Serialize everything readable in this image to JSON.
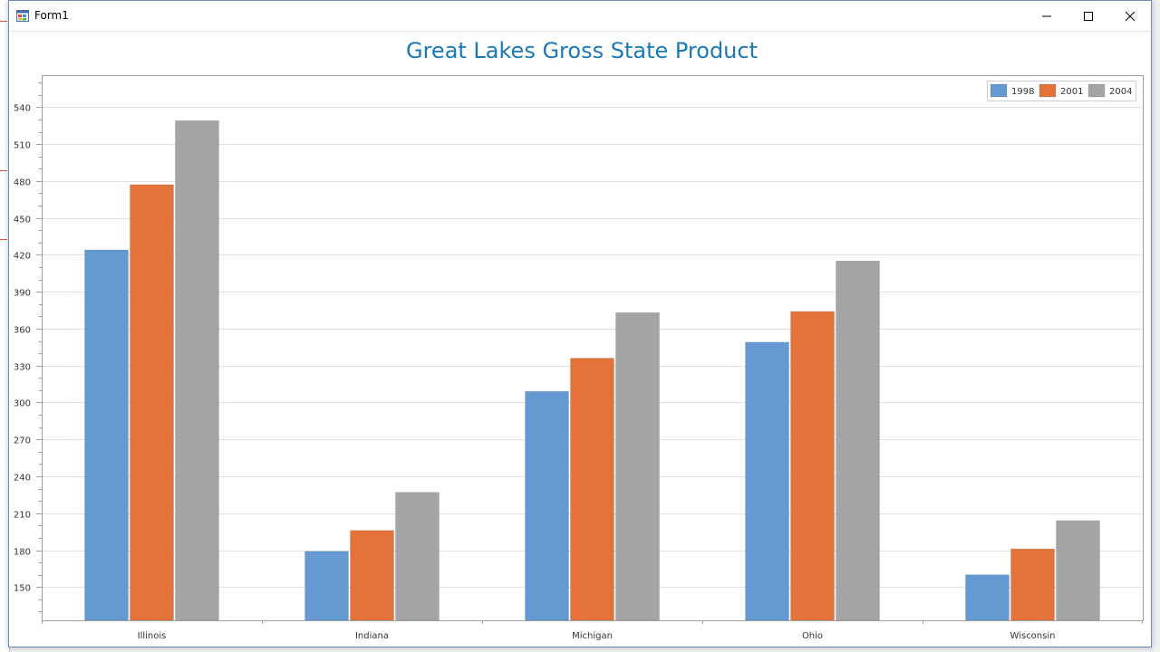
{
  "window": {
    "title": "Form1",
    "icon": "winforms-app-icon",
    "controls": [
      "minimize-icon",
      "maximize-icon",
      "close-icon"
    ]
  },
  "colors": {
    "title": "#1b79b6",
    "series": [
      "#6599d2",
      "#e3733a",
      "#a5a5a5"
    ],
    "grid": "#e2e2e2",
    "axis": "#a0a0a0"
  },
  "chart_data": {
    "type": "bar",
    "title": "Great Lakes Gross State Product",
    "categories": [
      "Illinois",
      "Indiana",
      "Michigan",
      "Ohio",
      "Wisconsin"
    ],
    "series": [
      {
        "name": "1998",
        "values": [
          424,
          179,
          309,
          349,
          160
        ]
      },
      {
        "name": "2001",
        "values": [
          477,
          196,
          336,
          374,
          181
        ]
      },
      {
        "name": "2004",
        "values": [
          529,
          227,
          373,
          415,
          204
        ]
      }
    ],
    "y_ticks": [
      150,
      180,
      210,
      240,
      270,
      300,
      330,
      360,
      390,
      420,
      450,
      480,
      510,
      540
    ],
    "ylim": [
      123,
      566
    ],
    "grid": true,
    "legend_position": "top-right",
    "xlabel": "",
    "ylabel": ""
  }
}
